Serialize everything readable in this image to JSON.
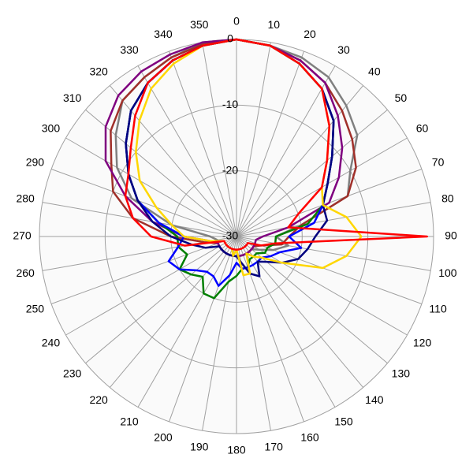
{
  "chart_data": {
    "type": "polar",
    "rlim": [
      -30,
      0
    ],
    "rticks": [
      -30,
      -20,
      -10,
      0
    ],
    "thetaticks": [
      0,
      10,
      20,
      30,
      40,
      50,
      60,
      70,
      80,
      90,
      100,
      110,
      120,
      130,
      140,
      150,
      160,
      170,
      180,
      190,
      200,
      210,
      220,
      230,
      240,
      250,
      260,
      270,
      280,
      290,
      300,
      310,
      320,
      330,
      340,
      350
    ],
    "theta": [
      0,
      10,
      20,
      30,
      40,
      50,
      60,
      70,
      80,
      90,
      100,
      110,
      120,
      130,
      140,
      150,
      160,
      170,
      180,
      190,
      200,
      210,
      220,
      230,
      240,
      250,
      260,
      270,
      280,
      290,
      300,
      310,
      320,
      330,
      340,
      350
    ],
    "grid": true,
    "series": [
      {
        "color": "#808080",
        "values": [
          0,
          -0.5,
          -1,
          -2,
          -4,
          -6,
          -10,
          -12,
          -20,
          -24,
          -22,
          -24,
          -26,
          -27,
          -27,
          -27,
          -27,
          -27,
          -27,
          -27,
          -27,
          -27,
          -27,
          -27,
          -27,
          -27,
          -27,
          -26,
          -20,
          -13,
          -9,
          -6,
          -3,
          -2,
          -1,
          0
        ]
      },
      {
        "color": "#a0302a",
        "values": [
          0,
          -0.5,
          -1.5,
          -3,
          -5,
          -7,
          -9,
          -12,
          -20,
          -22,
          -23,
          -26,
          -27,
          -27,
          -27,
          -27,
          -27,
          -27,
          -27,
          -27,
          -27,
          -27,
          -27,
          -27,
          -27,
          -27,
          -25,
          -20,
          -14,
          -10,
          -8,
          -5,
          -3,
          -2,
          -1,
          -0.3
        ]
      },
      {
        "color": "#7f007f",
        "values": [
          0,
          -0.5,
          -1.5,
          -3,
          -6,
          -9,
          -12,
          -15,
          -22,
          -26,
          -27,
          -27,
          -27,
          -27,
          -27,
          -27,
          -27,
          -27,
          -27,
          -27,
          -27,
          -27,
          -27,
          -27,
          -27,
          -27,
          -26,
          -22,
          -17,
          -12,
          -7,
          -4,
          -2,
          -1,
          -0.5,
          0
        ]
      },
      {
        "color": "#007f00",
        "values": [
          0,
          -0.5,
          -2,
          -4,
          -7,
          -11,
          -14,
          -16,
          -19,
          -24,
          -24,
          -25,
          -25,
          -26,
          -26,
          -26,
          -25,
          -25,
          -24,
          -23,
          -20,
          -20,
          -22,
          -21,
          -20,
          -22,
          -21,
          -21,
          -18,
          -14,
          -11,
          -8,
          -5,
          -3,
          -1.5,
          -0.5
        ]
      },
      {
        "color": "#0000ff",
        "values": [
          0,
          -0.5,
          -2,
          -4,
          -7,
          -11,
          -14,
          -16,
          -18,
          -22,
          -20,
          -23,
          -24,
          -25,
          -25,
          -25,
          -25,
          -25,
          -26,
          -24,
          -22,
          -23,
          -23,
          -22,
          -20,
          -19,
          -21,
          -22,
          -18,
          -14,
          -11,
          -8,
          -5,
          -3,
          -1.5,
          -0.5
        ]
      },
      {
        "color": "#00007f",
        "values": [
          0,
          -0.5,
          -2,
          -4,
          -7,
          -11,
          -14,
          -16,
          -16,
          -18,
          -19,
          -20,
          -22,
          -24,
          -25,
          -23,
          -24,
          -26,
          -27,
          -27,
          -27,
          -27,
          -27,
          -27,
          -27,
          -25,
          -23,
          -20,
          -17,
          -14,
          -11,
          -8,
          -5,
          -3,
          -1.5,
          -0.5
        ]
      },
      {
        "color": "#ffd700",
        "values": [
          0,
          -0.5,
          -2,
          -4,
          -8,
          -12,
          -15,
          -16,
          -13,
          -11,
          -13,
          -16,
          -22,
          -25,
          -26,
          -27,
          -24,
          -24,
          -28,
          -27,
          -28,
          -28,
          -28,
          -28,
          -28,
          -28,
          -26,
          -22,
          -20,
          -17,
          -13,
          -10,
          -7,
          -4,
          -2,
          -0.5
        ]
      },
      {
        "color": "#ff0000",
        "values": [
          0,
          -0.5,
          -2,
          -4,
          -8,
          -12,
          -15,
          -20,
          -22,
          -1,
          -24,
          -26,
          -28,
          -28,
          -28,
          -28,
          -28,
          -28,
          -28,
          -28,
          -28,
          -28,
          -28,
          -28,
          -28,
          -28,
          -22,
          -17,
          -14,
          -12,
          -11,
          -9,
          -6,
          -3,
          -1.5,
          -0.5
        ]
      }
    ]
  }
}
